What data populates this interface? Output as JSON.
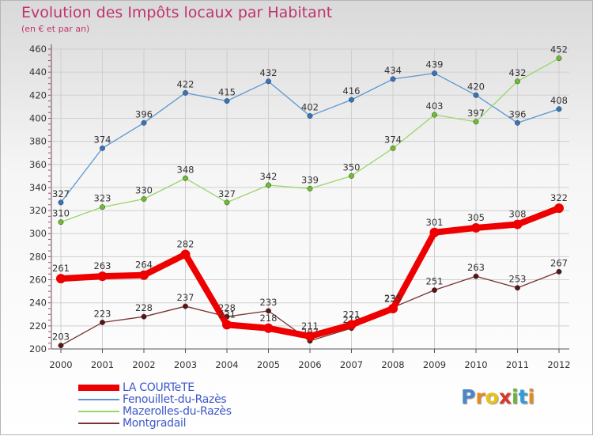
{
  "chart_data": {
    "type": "line",
    "title": "Evolution des Impôts locaux par Habitant",
    "subtitle": "(en € et par an)",
    "x": [
      "2000",
      "2001",
      "2002",
      "2003",
      "2004",
      "2005",
      "2006",
      "2007",
      "2008",
      "2009",
      "2010",
      "2011",
      "2012"
    ],
    "ylim": [
      200,
      460
    ],
    "yticks": [
      200,
      220,
      240,
      260,
      280,
      300,
      320,
      340,
      360,
      380,
      400,
      420,
      440,
      460
    ],
    "grid": true,
    "legend_position": "bottom-left",
    "series": [
      {
        "name": "LA COURTeTE",
        "color": "#ee0000",
        "point_color": "#ee0000",
        "emphasis": true,
        "values": [
          261,
          263,
          264,
          282,
          221,
          218,
          211,
          221,
          235,
          301,
          305,
          308,
          322
        ],
        "labels": [
          "261",
          "263",
          "264",
          "282",
          "221",
          "218",
          "211",
          "221",
          "235",
          "301",
          "305",
          "308",
          "322"
        ]
      },
      {
        "name": "Fenouillet-du-Razès",
        "color": "#5b96d2",
        "point_color": "#3474bd",
        "emphasis": false,
        "values": [
          327,
          374,
          396,
          422,
          415,
          432,
          402,
          416,
          434,
          439,
          420,
          396,
          408
        ],
        "labels": [
          "327",
          "374",
          "396",
          "422",
          "415",
          "432",
          "402",
          "416",
          "434",
          "439",
          "420",
          "396",
          "408"
        ]
      },
      {
        "name": "Mazerolles-du-Razès",
        "color": "#99d66b",
        "point_color": "#6bbf2b",
        "emphasis": false,
        "values": [
          310,
          323,
          330,
          348,
          327,
          342,
          339,
          350,
          374,
          403,
          397,
          432,
          452
        ],
        "labels": [
          "310",
          "323",
          "330",
          "348",
          "327",
          "342",
          "339",
          "350",
          "374",
          "403",
          "397",
          "432",
          "452"
        ]
      },
      {
        "name": "Montgradail",
        "color": "#7a3232",
        "point_color": "#5a1414",
        "emphasis": false,
        "values": [
          203,
          223,
          228,
          237,
          228,
          233,
          207,
          218,
          236,
          251,
          263,
          253,
          267
        ],
        "labels": [
          "203",
          "223",
          "228",
          "237",
          "228",
          "233",
          "207",
          "218",
          "236",
          "251",
          "263",
          "253",
          "267"
        ]
      }
    ]
  },
  "logo": {
    "letters": [
      "P",
      "r",
      "o",
      "x",
      "i",
      "t",
      "i"
    ],
    "colors": [
      "#4a86c8",
      "#e58a1f",
      "#e8c21a",
      "#d9362b",
      "#6bb33d",
      "#2f9dd6",
      "#e58a1f"
    ]
  }
}
